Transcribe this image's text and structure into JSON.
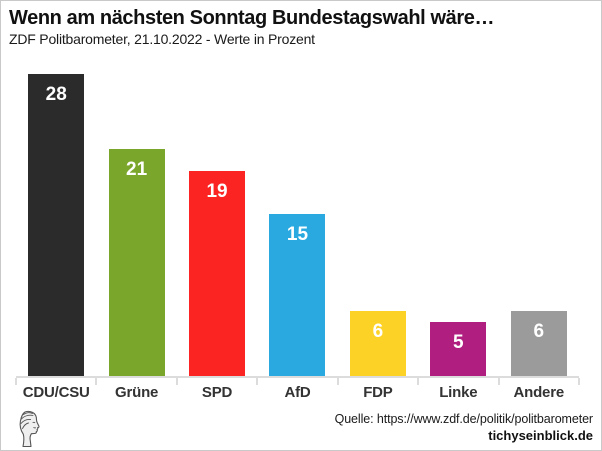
{
  "chart_data": {
    "type": "bar",
    "title": "Wenn am nächsten Sonntag Bundestagswahl wäre…",
    "subtitle": "ZDF Politbarometer, 21.10.2022 - Werte in Prozent",
    "categories": [
      "CDU/CSU",
      "Grüne",
      "SPD",
      "AfD",
      "FDP",
      "Linke",
      "Andere"
    ],
    "values": [
      28,
      21,
      19,
      15,
      6,
      5,
      6
    ],
    "bar_colors": [
      "#2b2b2b",
      "#7ba62c",
      "#fc2423",
      "#29a9e0",
      "#fcd226",
      "#b01e7f",
      "#9b9b9b"
    ],
    "value_label_color": "#ffffff",
    "value_labels_position": "inside-top",
    "xlabel": "",
    "ylabel": "",
    "ylim": [
      0,
      29
    ],
    "grid": false,
    "legend": "none",
    "axis_color": "#dcdcdc"
  },
  "footer": {
    "source": "Quelle: https://www.zdf.de/politik/politbarometer",
    "branding": "tichyseinblick.de",
    "logo_icon": "classical-head-profile"
  }
}
